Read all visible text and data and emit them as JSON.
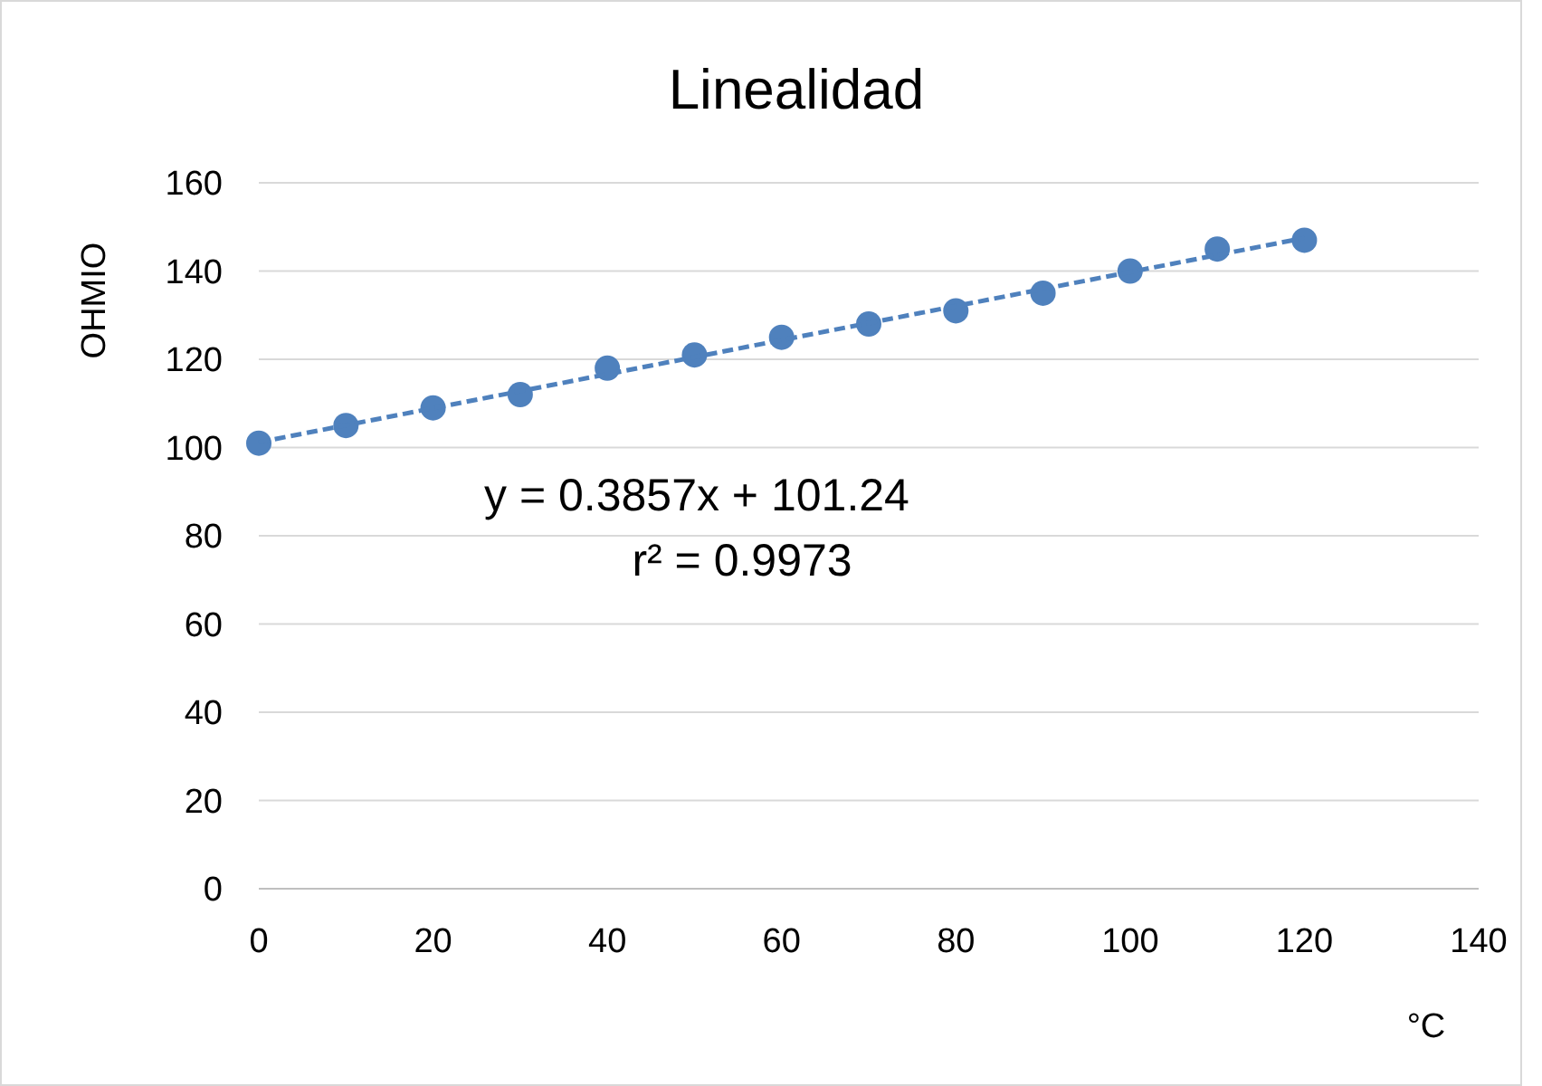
{
  "chart_data": {
    "type": "scatter",
    "title": "Linealidad",
    "xlabel": "°C",
    "ylabel": "OHMIO",
    "annotations": [
      "y = 0.3857x + 101.24",
      "r² = 0.9973"
    ],
    "x": [
      0,
      10,
      20,
      30,
      40,
      50,
      60,
      70,
      80,
      90,
      100,
      110,
      120
    ],
    "series": [
      {
        "color": "#4f81bd",
        "marker": "circle",
        "values": [
          101,
          105,
          109,
          112,
          118,
          121,
          125,
          128,
          131,
          135,
          140,
          145,
          147
        ]
      },
      {
        "type": "line",
        "color": "#4f81bd",
        "line_style": "dashed",
        "marker": "none",
        "x": [
          0,
          120
        ],
        "values": [
          101.2,
          147.5
        ]
      }
    ],
    "xlim": [
      0,
      140
    ],
    "xticks": [
      0,
      20,
      40,
      60,
      80,
      100,
      120,
      140
    ],
    "ylim": [
      0,
      160
    ],
    "yticks": [
      0,
      20,
      40,
      60,
      80,
      100,
      120,
      140,
      160
    ],
    "grid": "y"
  }
}
